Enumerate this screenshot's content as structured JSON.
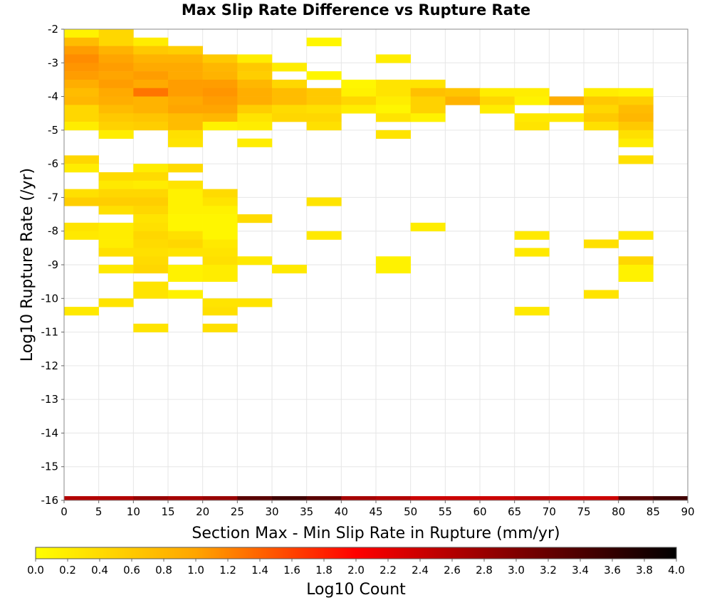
{
  "chart_data": {
    "type": "heatmap",
    "title": "Max Slip Rate Difference vs Rupture Rate",
    "xlabel": "Section Max - Min Slip Rate in Rupture (mm/yr)",
    "ylabel": "Log10 Rupture Rate (/yr)",
    "xlim": [
      0,
      90
    ],
    "ylim": [
      -16,
      -2
    ],
    "x_ticks": [
      "0",
      "5",
      "10",
      "15",
      "20",
      "25",
      "30",
      "35",
      "40",
      "45",
      "50",
      "55",
      "60",
      "65",
      "70",
      "75",
      "80",
      "85",
      "90"
    ],
    "y_ticks": [
      "-2",
      "-3",
      "-4",
      "-5",
      "-6",
      "-7",
      "-8",
      "-9",
      "-10",
      "-11",
      "-12",
      "-13",
      "-14",
      "-15",
      "-16"
    ],
    "bin_width_x": 5,
    "bin_height_y": 0.25,
    "grid": true,
    "colorbar": {
      "label": "Log10 Count",
      "range": [
        0,
        4
      ],
      "ticks": [
        "0.0",
        "0.2",
        "0.4",
        "0.6",
        "0.8",
        "1.0",
        "1.2",
        "1.4",
        "1.6",
        "1.8",
        "2.0",
        "2.2",
        "2.4",
        "2.6",
        "2.8",
        "3.0",
        "3.2",
        "3.4",
        "3.6",
        "3.8",
        "4.0"
      ],
      "colors": [
        "#ffff00",
        "#ffa500",
        "#ff0000",
        "#800000",
        "#000000"
      ]
    },
    "cells": [
      [
        0,
        -2.125,
        0.15
      ],
      [
        5,
        -2.125,
        0.45
      ],
      [
        5,
        -2.375,
        0.45
      ],
      [
        10,
        -2.375,
        0.2
      ],
      [
        35,
        -2.375,
        0.1
      ],
      [
        0,
        -2.375,
        0.75
      ],
      [
        0,
        -2.625,
        1.05
      ],
      [
        5,
        -2.625,
        0.85
      ],
      [
        10,
        -2.625,
        0.6
      ],
      [
        15,
        -2.625,
        0.55
      ],
      [
        15,
        -2.875,
        0.85
      ],
      [
        20,
        -2.875,
        0.6
      ],
      [
        25,
        -2.875,
        0.2
      ],
      [
        0,
        -2.875,
        1.15
      ],
      [
        5,
        -2.875,
        1.0
      ],
      [
        10,
        -2.875,
        0.85
      ],
      [
        45,
        -2.875,
        0.2
      ],
      [
        0,
        -3.125,
        1.1
      ],
      [
        5,
        -3.125,
        1.05
      ],
      [
        10,
        -3.125,
        0.95
      ],
      [
        15,
        -3.125,
        0.95
      ],
      [
        20,
        -3.125,
        0.8
      ],
      [
        25,
        -3.125,
        0.6
      ],
      [
        30,
        -3.125,
        0.2
      ],
      [
        0,
        -3.375,
        1.05
      ],
      [
        5,
        -3.375,
        1.0
      ],
      [
        10,
        -3.375,
        1.05
      ],
      [
        15,
        -3.375,
        0.95
      ],
      [
        20,
        -3.375,
        0.85
      ],
      [
        25,
        -3.375,
        0.55
      ],
      [
        35,
        -3.375,
        0.1
      ],
      [
        0,
        -3.625,
        0.9
      ],
      [
        5,
        -3.625,
        1.05
      ],
      [
        10,
        -3.625,
        0.95
      ],
      [
        15,
        -3.625,
        1.05
      ],
      [
        20,
        -3.625,
        1.05
      ],
      [
        25,
        -3.625,
        0.8
      ],
      [
        30,
        -3.625,
        0.45
      ],
      [
        40,
        -3.625,
        0.1
      ],
      [
        45,
        -3.625,
        0.3
      ],
      [
        50,
        -3.625,
        0.3
      ],
      [
        0,
        -3.875,
        0.75
      ],
      [
        5,
        -3.875,
        0.95
      ],
      [
        10,
        -3.875,
        1.3
      ],
      [
        15,
        -3.875,
        1.05
      ],
      [
        20,
        -3.875,
        1.1
      ],
      [
        25,
        -3.875,
        0.9
      ],
      [
        30,
        -3.875,
        0.75
      ],
      [
        35,
        -3.875,
        0.6
      ],
      [
        40,
        -3.875,
        0.15
      ],
      [
        45,
        -3.875,
        0.3
      ],
      [
        50,
        -3.875,
        0.7
      ],
      [
        55,
        -3.875,
        0.65
      ],
      [
        60,
        -3.875,
        0.2
      ],
      [
        65,
        -3.875,
        0.2
      ],
      [
        75,
        -3.875,
        0.2
      ],
      [
        80,
        -3.875,
        0.15
      ],
      [
        0,
        -4.125,
        0.8
      ],
      [
        5,
        -4.125,
        0.9
      ],
      [
        10,
        -4.125,
        0.85
      ],
      [
        15,
        -4.125,
        0.95
      ],
      [
        20,
        -4.125,
        1.05
      ],
      [
        25,
        -4.125,
        0.9
      ],
      [
        30,
        -4.125,
        0.75
      ],
      [
        35,
        -4.125,
        0.6
      ],
      [
        40,
        -4.125,
        0.45
      ],
      [
        45,
        -4.125,
        0.2
      ],
      [
        50,
        -4.125,
        0.5
      ],
      [
        55,
        -4.125,
        0.85
      ],
      [
        60,
        -4.125,
        0.45
      ],
      [
        65,
        -4.125,
        0.15
      ],
      [
        70,
        -4.125,
        0.9
      ],
      [
        75,
        -4.125,
        0.6
      ],
      [
        80,
        -4.125,
        0.55
      ],
      [
        0,
        -4.375,
        0.45
      ],
      [
        5,
        -4.375,
        0.75
      ],
      [
        10,
        -4.375,
        0.85
      ],
      [
        15,
        -4.375,
        1.0
      ],
      [
        20,
        -4.375,
        1.0
      ],
      [
        25,
        -4.375,
        0.55
      ],
      [
        30,
        -4.375,
        0.4
      ],
      [
        35,
        -4.375,
        0.35
      ],
      [
        40,
        -4.375,
        0.2
      ],
      [
        45,
        -4.375,
        0.1
      ],
      [
        50,
        -4.375,
        0.5
      ],
      [
        60,
        -4.375,
        0.2
      ],
      [
        75,
        -4.375,
        0.45
      ],
      [
        80,
        -4.375,
        0.75
      ],
      [
        0,
        -4.625,
        0.45
      ],
      [
        5,
        -4.625,
        0.6
      ],
      [
        10,
        -4.625,
        0.65
      ],
      [
        15,
        -4.625,
        0.75
      ],
      [
        20,
        -4.625,
        0.8
      ],
      [
        25,
        -4.625,
        0.3
      ],
      [
        30,
        -4.625,
        0.45
      ],
      [
        35,
        -4.625,
        0.45
      ],
      [
        45,
        -4.625,
        0.3
      ],
      [
        50,
        -4.625,
        0.15
      ],
      [
        65,
        -4.625,
        0.25
      ],
      [
        70,
        -4.625,
        0.25
      ],
      [
        75,
        -4.625,
        0.6
      ],
      [
        80,
        -4.625,
        0.8
      ],
      [
        0,
        -4.875,
        0.2
      ],
      [
        5,
        -4.875,
        0.5
      ],
      [
        10,
        -4.875,
        0.55
      ],
      [
        15,
        -4.875,
        0.75
      ],
      [
        20,
        -4.875,
        0.15
      ],
      [
        25,
        -4.875,
        0.2
      ],
      [
        35,
        -4.875,
        0.35
      ],
      [
        65,
        -4.875,
        0.3
      ],
      [
        75,
        -4.875,
        0.35
      ],
      [
        80,
        -4.875,
        0.6
      ],
      [
        5,
        -5.125,
        0.2
      ],
      [
        15,
        -5.125,
        0.35
      ],
      [
        45,
        -5.125,
        0.3
      ],
      [
        80,
        -5.125,
        0.35
      ],
      [
        15,
        -5.375,
        0.3
      ],
      [
        25,
        -5.375,
        0.2
      ],
      [
        80,
        -5.375,
        0.2
      ],
      [
        0,
        -5.875,
        0.45
      ],
      [
        0,
        -6.125,
        0.2
      ],
      [
        10,
        -6.125,
        0.2
      ],
      [
        15,
        -6.125,
        0.4
      ],
      [
        80,
        -5.875,
        0.35
      ],
      [
        5,
        -6.375,
        0.4
      ],
      [
        10,
        -6.375,
        0.4
      ],
      [
        5,
        -6.625,
        0.25
      ],
      [
        10,
        -6.625,
        0.2
      ],
      [
        15,
        -6.625,
        0.3
      ],
      [
        0,
        -6.875,
        0.35
      ],
      [
        5,
        -6.875,
        0.45
      ],
      [
        10,
        -6.875,
        0.45
      ],
      [
        15,
        -6.875,
        0.15
      ],
      [
        20,
        -6.875,
        0.4
      ],
      [
        0,
        -7.125,
        0.55
      ],
      [
        5,
        -7.125,
        0.55
      ],
      [
        10,
        -7.125,
        0.55
      ],
      [
        15,
        -7.125,
        0.15
      ],
      [
        20,
        -7.125,
        0.3
      ],
      [
        35,
        -7.125,
        0.3
      ],
      [
        5,
        -7.375,
        0.35
      ],
      [
        10,
        -7.375,
        0.45
      ],
      [
        15,
        -7.375,
        0.15
      ],
      [
        20,
        -7.375,
        0.15
      ],
      [
        10,
        -7.625,
        0.3
      ],
      [
        15,
        -7.625,
        0.1
      ],
      [
        20,
        -7.625,
        0.1
      ],
      [
        25,
        -7.625,
        0.4
      ],
      [
        0,
        -7.875,
        0.3
      ],
      [
        5,
        -7.875,
        0.2
      ],
      [
        10,
        -7.875,
        0.35
      ],
      [
        15,
        -7.875,
        0.1
      ],
      [
        20,
        -7.875,
        0.1
      ],
      [
        50,
        -7.875,
        0.2
      ],
      [
        0,
        -8.125,
        0.25
      ],
      [
        5,
        -8.125,
        0.2
      ],
      [
        10,
        -8.125,
        0.45
      ],
      [
        15,
        -8.125,
        0.35
      ],
      [
        20,
        -8.125,
        0.1
      ],
      [
        35,
        -8.125,
        0.25
      ],
      [
        65,
        -8.125,
        0.25
      ],
      [
        80,
        -8.125,
        0.25
      ],
      [
        5,
        -8.375,
        0.2
      ],
      [
        10,
        -8.375,
        0.4
      ],
      [
        15,
        -8.375,
        0.45
      ],
      [
        20,
        -8.375,
        0.25
      ],
      [
        75,
        -8.375,
        0.35
      ],
      [
        5,
        -8.625,
        0.35
      ],
      [
        10,
        -8.625,
        0.35
      ],
      [
        15,
        -8.625,
        0.3
      ],
      [
        20,
        -8.625,
        0.3
      ],
      [
        65,
        -8.625,
        0.25
      ],
      [
        10,
        -8.875,
        0.4
      ],
      [
        20,
        -8.875,
        0.35
      ],
      [
        25,
        -8.875,
        0.25
      ],
      [
        45,
        -8.875,
        0.15
      ],
      [
        80,
        -8.875,
        0.45
      ],
      [
        5,
        -9.125,
        0.25
      ],
      [
        10,
        -9.125,
        0.45
      ],
      [
        15,
        -9.125,
        0.15
      ],
      [
        20,
        -9.125,
        0.2
      ],
      [
        30,
        -9.125,
        0.25
      ],
      [
        45,
        -9.125,
        0.15
      ],
      [
        80,
        -9.125,
        0.15
      ],
      [
        15,
        -9.375,
        0.15
      ],
      [
        20,
        -9.375,
        0.2
      ],
      [
        80,
        -9.375,
        0.15
      ],
      [
        10,
        -9.625,
        0.3
      ],
      [
        10,
        -9.875,
        0.3
      ],
      [
        15,
        -9.875,
        0.15
      ],
      [
        75,
        -9.875,
        0.3
      ],
      [
        5,
        -10.125,
        0.3
      ],
      [
        20,
        -10.125,
        0.3
      ],
      [
        25,
        -10.125,
        0.3
      ],
      [
        0,
        -10.375,
        0.25
      ],
      [
        20,
        -10.375,
        0.35
      ],
      [
        65,
        -10.375,
        0.25
      ],
      [
        10,
        -10.875,
        0.3
      ],
      [
        20,
        -10.875,
        0.35
      ]
    ],
    "baseline_row": {
      "y": -16,
      "values": [
        2.6,
        2.6,
        2.8,
        2.7,
        2.8,
        3.3,
        3.5,
        3.3,
        2.7,
        2.6,
        2.4,
        2.4,
        2.4,
        2.5,
        2.4,
        2.4,
        3.3,
        3.5
      ]
    }
  }
}
